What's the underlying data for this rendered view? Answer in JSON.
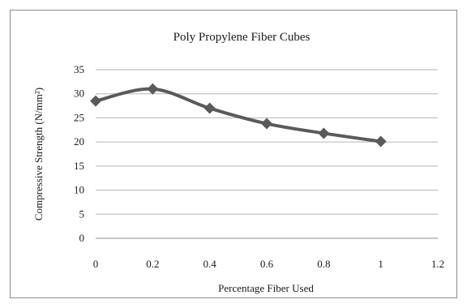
{
  "chart_data": {
    "type": "line",
    "title": "Poly Propylene Fiber Cubes",
    "xlabel": "Percentage Fiber Used",
    "ylabel": "Compressive Strength (N/mm²)",
    "xlim": [
      0,
      1.2
    ],
    "ylim": [
      0,
      35
    ],
    "xticks": [
      0,
      0.2,
      0.4,
      0.6,
      0.8,
      1,
      1.2
    ],
    "yticks": [
      0,
      5,
      10,
      15,
      20,
      25,
      30,
      35
    ],
    "grid": "horizontal",
    "legend": "none",
    "series": [
      {
        "x": [
          0,
          0.2,
          0.4,
          0.6,
          0.8,
          1
        ],
        "values": [
          28.5,
          31,
          27,
          23.8,
          21.8,
          20.1
        ],
        "color": "#5a5a5a",
        "marker": "diamond"
      }
    ]
  }
}
